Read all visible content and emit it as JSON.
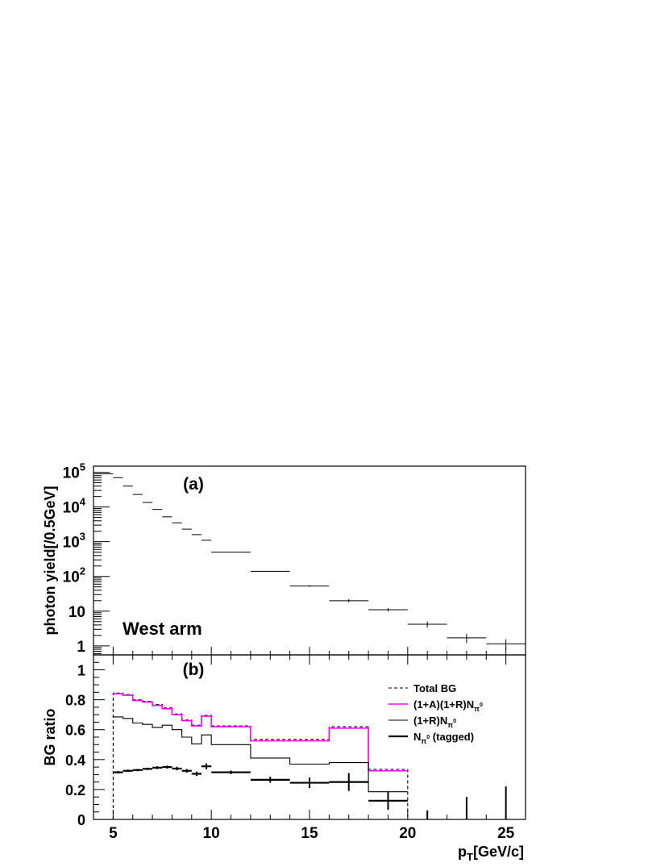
{
  "chart_data": [
    {
      "type": "scatter",
      "panel_label": "(a)",
      "annotation": "West arm",
      "ylabel": "photon yield[/0.5GeV]",
      "yscale": "log",
      "ylim": [
        0.55,
        150000
      ],
      "xlim": [
        4,
        26
      ],
      "yticks": [
        {
          "value": 100000,
          "base": "10",
          "exp": "5"
        },
        {
          "value": 10000,
          "base": "10",
          "exp": "4"
        },
        {
          "value": 1000,
          "base": "10",
          "exp": "3"
        },
        {
          "value": 100,
          "base": "10",
          "exp": "2"
        },
        {
          "value": 10,
          "base": "10",
          "exp": ""
        },
        {
          "value": 1,
          "base": "1",
          "exp": ""
        }
      ],
      "points": [
        {
          "x0": 4.0,
          "x1": 5.0,
          "y": 90000,
          "err": 0
        },
        {
          "x0": 5.0,
          "x1": 5.5,
          "y": 70000,
          "err": 0
        },
        {
          "x0": 5.5,
          "x1": 6.0,
          "y": 40000,
          "err": 0
        },
        {
          "x0": 6.0,
          "x1": 6.5,
          "y": 23000,
          "err": 0
        },
        {
          "x0": 6.5,
          "x1": 7.0,
          "y": 13500,
          "err": 0
        },
        {
          "x0": 7.0,
          "x1": 7.5,
          "y": 8500,
          "err": 0
        },
        {
          "x0": 7.5,
          "x1": 8.0,
          "y": 5200,
          "err": 0
        },
        {
          "x0": 8.0,
          "x1": 8.5,
          "y": 3500,
          "err": 0
        },
        {
          "x0": 8.5,
          "x1": 9.0,
          "y": 2300,
          "err": 0
        },
        {
          "x0": 9.0,
          "x1": 9.5,
          "y": 1600,
          "err": 0
        },
        {
          "x0": 9.5,
          "x1": 10.0,
          "y": 1100,
          "err": 0
        },
        {
          "x0": 10.0,
          "x1": 12.0,
          "y": 500,
          "err": 0
        },
        {
          "x0": 12.0,
          "x1": 14.0,
          "y": 140,
          "err": 0
        },
        {
          "x0": 14.0,
          "x1": 16.0,
          "y": 53,
          "err": 3
        },
        {
          "x0": 16.0,
          "x1": 18.0,
          "y": 20,
          "err": 2
        },
        {
          "x0": 18.0,
          "x1": 20.0,
          "y": 11,
          "err": 1.3
        },
        {
          "x0": 20.0,
          "x1": 22.0,
          "y": 4.2,
          "err": 0.8
        },
        {
          "x0": 22.0,
          "x1": 24.0,
          "y": 1.7,
          "err": 0.5
        },
        {
          "x0": 24.0,
          "x1": 26.0,
          "y": 1.15,
          "err": 0.4
        }
      ]
    },
    {
      "type": "line",
      "panel_label": "(b)",
      "xlabel_main": "p",
      "xlabel_sub": "T",
      "xlabel_rest": "[GeV/c]",
      "ylabel": "BG ratio",
      "xlim": [
        4,
        26
      ],
      "ylim": [
        0,
        1.1
      ],
      "xticks": [
        5,
        10,
        15,
        20,
        25
      ],
      "yticks": [
        "0",
        "0.2",
        "0.4",
        "0.6",
        "0.8",
        "1"
      ],
      "bin_edges": [
        5,
        5.5,
        6,
        6.5,
        7,
        7.5,
        8,
        8.5,
        9,
        9.5,
        10,
        12,
        14,
        16,
        18,
        20
      ],
      "legend_position": "top-right",
      "series": [
        {
          "name": "Total BG",
          "style": "dashed",
          "color": "#000000",
          "values": [
            0.845,
            0.835,
            0.8,
            0.79,
            0.768,
            0.745,
            0.705,
            0.665,
            0.63,
            0.695,
            0.625,
            0.535,
            0.535,
            0.62,
            0.335
          ]
        },
        {
          "name_main": "(1+A)(1+R)N",
          "name_sub": "π",
          "name_sup": "0",
          "name_rest": "",
          "style": "solid",
          "color": "#ff00ff",
          "values": [
            0.84,
            0.83,
            0.795,
            0.785,
            0.762,
            0.74,
            0.7,
            0.66,
            0.625,
            0.69,
            0.62,
            0.525,
            0.525,
            0.61,
            0.325
          ]
        },
        {
          "name_main": "(1+R)N",
          "name_sub": "π",
          "name_sup": "0",
          "name_rest": "",
          "style": "solid",
          "color": "#000000",
          "values": [
            0.685,
            0.675,
            0.645,
            0.635,
            0.615,
            0.63,
            0.6,
            0.55,
            0.505,
            0.565,
            0.5,
            0.41,
            0.37,
            0.38,
            0.185
          ]
        }
      ],
      "points": {
        "name_main": "N",
        "name_sub": "π",
        "name_sup": "0",
        "name_rest": " (tagged)",
        "color": "#000000",
        "data": [
          {
            "x0": 5.0,
            "x1": 5.5,
            "y": 0.315,
            "err": 0.008
          },
          {
            "x0": 5.5,
            "x1": 6.0,
            "y": 0.325,
            "err": 0.008
          },
          {
            "x0": 6.0,
            "x1": 6.5,
            "y": 0.33,
            "err": 0.008
          },
          {
            "x0": 6.5,
            "x1": 7.0,
            "y": 0.338,
            "err": 0.008
          },
          {
            "x0": 7.0,
            "x1": 7.5,
            "y": 0.346,
            "err": 0.01
          },
          {
            "x0": 7.5,
            "x1": 8.0,
            "y": 0.35,
            "err": 0.01
          },
          {
            "x0": 8.0,
            "x1": 8.5,
            "y": 0.34,
            "err": 0.012
          },
          {
            "x0": 8.5,
            "x1": 9.0,
            "y": 0.325,
            "err": 0.012
          },
          {
            "x0": 9.0,
            "x1": 9.5,
            "y": 0.305,
            "err": 0.015
          },
          {
            "x0": 9.5,
            "x1": 10.0,
            "y": 0.355,
            "err": 0.02
          },
          {
            "x0": 10.0,
            "x1": 12.0,
            "y": 0.315,
            "err": 0.012
          },
          {
            "x0": 12.0,
            "x1": 14.0,
            "y": 0.265,
            "err": 0.02
          },
          {
            "x0": 14.0,
            "x1": 16.0,
            "y": 0.245,
            "err": 0.035
          },
          {
            "x0": 16.0,
            "x1": 18.0,
            "y": 0.25,
            "err": 0.06
          },
          {
            "x0": 18.0,
            "x1": 20.0,
            "y": 0.125,
            "err": 0.06
          }
        ],
        "errors_only": [
          {
            "x": 21,
            "y": 0.0,
            "err": 0.06
          },
          {
            "x": 23,
            "y": 0.0,
            "err": 0.15
          },
          {
            "x": 25,
            "y": 0.0,
            "err": 0.22
          }
        ]
      }
    }
  ]
}
